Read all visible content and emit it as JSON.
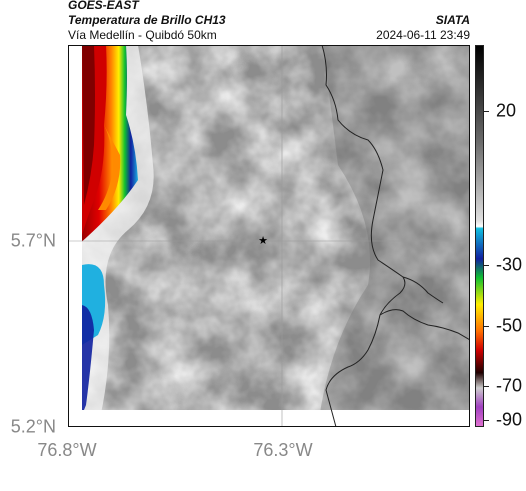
{
  "header": {
    "satellite": "GOES-EAST",
    "product": "Temperatura de Brillo CH13",
    "route": "Vía Medellín - Quibdó 50km",
    "source": "SIATA",
    "datetime": "2024-06-11 23:49"
  },
  "axes": {
    "lat_labels": [
      "5.7°N",
      "5.2°N"
    ],
    "lon_labels": [
      "76.8°W",
      "76.3°W"
    ]
  },
  "colorbar": {
    "labels": [
      "20",
      "-30",
      "-50",
      "-70",
      "-90"
    ]
  },
  "map": {
    "marker": "star-icon",
    "colors": {
      "gray_dark": "#7a7a7a",
      "gray_light": "#e8e8e8",
      "cold_red": "#e00000",
      "cold_yellow": "#ffee00",
      "cold_green": "#10c030",
      "cold_blue": "#1020a0",
      "cyan": "#20b0e0",
      "border_line": "#222222"
    }
  }
}
